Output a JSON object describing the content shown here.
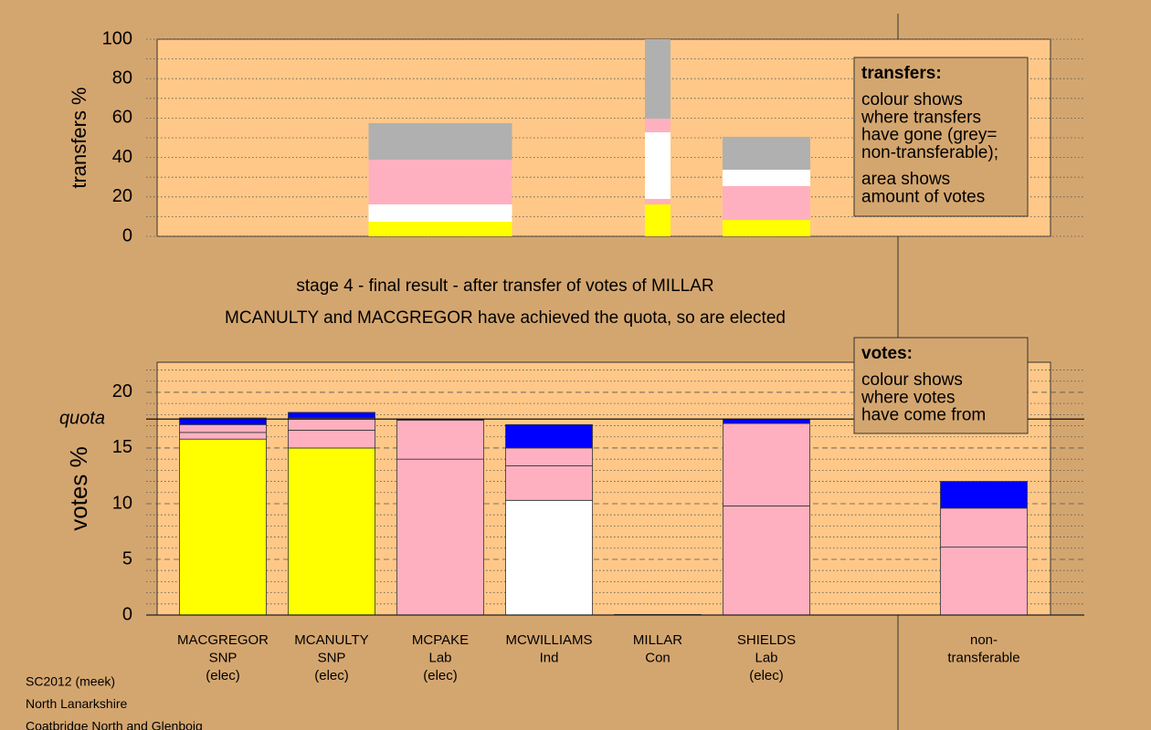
{
  "chart_data": [
    {
      "type": "bar",
      "ylabel": "transfers %",
      "ylim": [
        0,
        100
      ],
      "yticks": [
        0,
        20,
        40,
        60,
        80,
        100
      ],
      "minor_yticks": [
        10,
        30,
        50,
        70,
        90
      ],
      "grid": true,
      "stacks": [
        [],
        [],
        [
          {
            "color": "#ffff00",
            "value": 7.4
          },
          {
            "color": "#ffffff",
            "value": 8.8
          },
          {
            "color": "#ffb0c0",
            "value": 22.7
          },
          {
            "color": "#b0b0b0",
            "value": 18.5
          }
        ],
        [],
        [
          {
            "color": "#ffff00",
            "value": 16.2
          },
          {
            "color": "#ffb0c0",
            "value": 2.8
          },
          {
            "color": "#ffffff",
            "value": 33.8
          },
          {
            "color": "#ffb0c0",
            "value": 6.9
          },
          {
            "color": "#b0b0b0",
            "value": 40.3
          }
        ],
        [
          {
            "color": "#ffff00",
            "value": 8.3
          },
          {
            "color": "#ffb0c0",
            "value": 17.2
          },
          {
            "color": "#ffffff",
            "value": 8.3
          },
          {
            "color": "#b0b0b0",
            "value": 16.7
          }
        ],
        [],
        []
      ],
      "note": {
        "heading": "transfers:",
        "paragraphs": [
          [
            "colour shows",
            "where transfers",
            "have gone (grey=",
            "non-transferable);"
          ],
          [
            "area shows",
            "amount of votes"
          ]
        ]
      }
    },
    {
      "type": "bar",
      "title": "stage 4 - final result - after transfer of votes of MILLAR",
      "subtitle": "MCANULTY and MACGREGOR have achieved the quota, so are elected",
      "ylabel": "votes %",
      "ylim": [
        0,
        22.7
      ],
      "yticks": [
        0,
        5,
        10,
        15,
        20
      ],
      "minor_yticks": [
        1,
        2,
        3,
        4,
        6,
        7,
        8,
        9,
        11,
        12,
        13,
        14,
        16,
        17,
        18,
        19,
        21,
        22
      ],
      "grid": true,
      "quota": {
        "value": 17.6,
        "label": "quota"
      },
      "categories": [
        [
          "MACGREGOR",
          "SNP",
          "(elec)"
        ],
        [
          "MCANULTY",
          "SNP",
          "(elec)"
        ],
        [
          "MCPAKE",
          "Lab",
          "(elec)"
        ],
        [
          "MCWILLIAMS",
          "Ind"
        ],
        [
          "MILLAR",
          "Con"
        ],
        [
          "SHIELDS",
          "Lab",
          "(elec)"
        ],
        null,
        [
          "non-",
          "transferable"
        ]
      ],
      "stacks": [
        [
          {
            "color": "#ffff00",
            "value": 15.8
          },
          {
            "color": "#ffb0c0",
            "value": 0.6
          },
          {
            "color": "#ffb0c0",
            "value": 0.7
          },
          {
            "color": "#0000ff",
            "value": 0.6
          }
        ],
        [
          {
            "color": "#ffff00",
            "value": 15.0
          },
          {
            "color": "#ffb0c0",
            "value": 1.6
          },
          {
            "color": "#ffb0c0",
            "value": 1.1
          },
          {
            "color": "#0000ff",
            "value": 0.5
          }
        ],
        [
          {
            "color": "#ffb0c0",
            "value": 14.0
          },
          {
            "color": "#ffb0c0",
            "value": 3.5
          },
          {
            "color": "#0000ff",
            "value": 0.1
          }
        ],
        [
          {
            "color": "#ffffff",
            "value": 10.3
          },
          {
            "color": "#ffb0c0",
            "value": 3.1
          },
          {
            "color": "#ffb0c0",
            "value": 1.6
          },
          {
            "color": "#0000ff",
            "value": 2.1
          }
        ],
        [
          {
            "color": "#0000ff",
            "value": 0.05
          }
        ],
        [
          {
            "color": "#ffb0c0",
            "value": 9.8
          },
          {
            "color": "#ffb0c0",
            "value": 7.4
          },
          {
            "color": "#0000ff",
            "value": 0.4
          }
        ],
        [],
        [
          {
            "color": "#ffb0c0",
            "value": 6.1
          },
          {
            "color": "#ffb0c0",
            "value": 3.5
          },
          {
            "color": "#0000ff",
            "value": 2.4
          }
        ]
      ],
      "note": {
        "heading": "votes:",
        "paragraphs": [
          [
            "colour shows",
            "where votes",
            "have come from"
          ]
        ]
      }
    }
  ],
  "footer": [
    "SC2012 (meek)",
    "North Lanarkshire",
    "Coatbridge North and Glenboig"
  ]
}
